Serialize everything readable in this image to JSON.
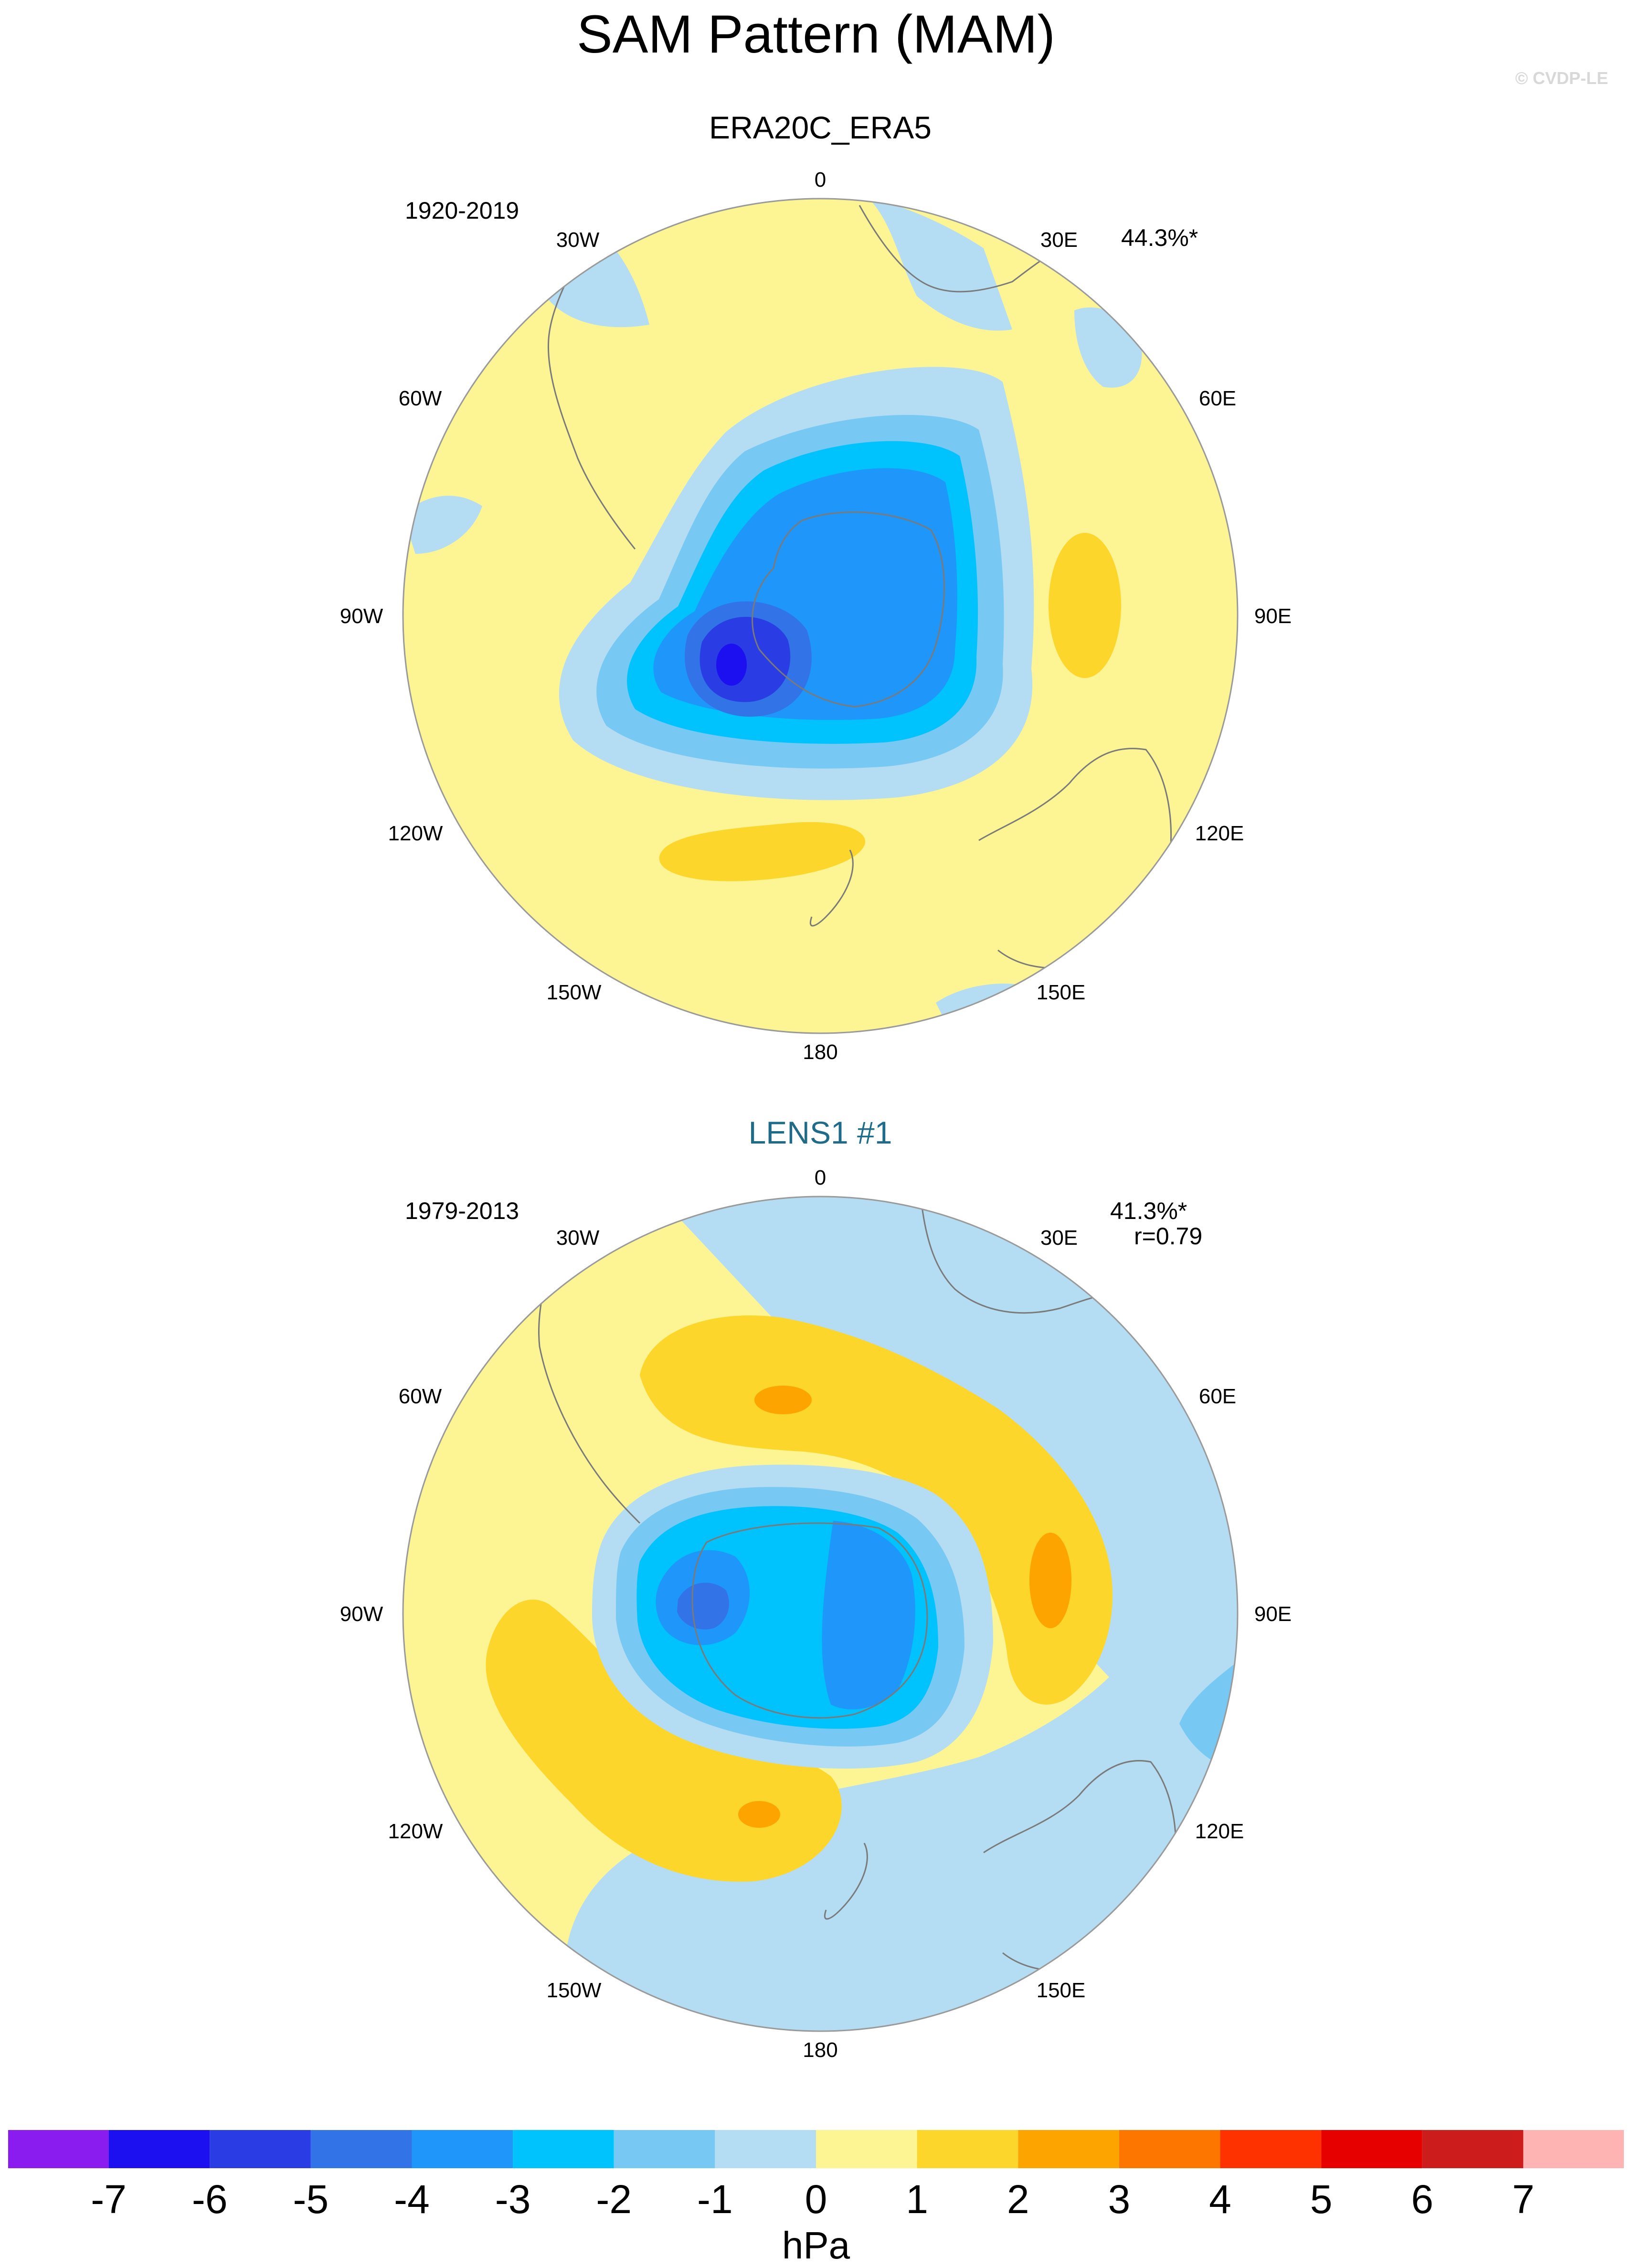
{
  "title": "SAM Pattern (MAM)",
  "copyright": "© CVDP-LE",
  "colors": {
    "bg": "#ffffff",
    "land_outline": "#7a7a7a",
    "panel2_title": "#1f6b8a"
  },
  "panels": [
    {
      "title": "ERA20C_ERA5",
      "period": "1920-2019",
      "stats": [
        "44.3%*"
      ],
      "lon_labels": [
        "0",
        "30E",
        "60E",
        "90E",
        "120E",
        "150E",
        "180",
        "150W",
        "120W",
        "90W",
        "60W",
        "30W"
      ]
    },
    {
      "title": "LENS1 #1",
      "period": "1979-2013",
      "stats": [
        "41.3%*",
        "r=0.79"
      ],
      "lon_labels": [
        "0",
        "30E",
        "60E",
        "90E",
        "120E",
        "150E",
        "180",
        "150W",
        "120W",
        "90W",
        "60W",
        "30W"
      ]
    }
  ],
  "chart_data": {
    "type": "heatmap",
    "projection": "south-polar-stereographic",
    "units": "hPa",
    "colorbar": {
      "labels": [
        "-7",
        "-6",
        "-5",
        "-4",
        "-3",
        "-2",
        "-1",
        "0",
        "1",
        "2",
        "3",
        "4",
        "5",
        "6",
        "7"
      ],
      "colors": [
        "#8a1cf0",
        "#1c10f0",
        "#2a3ce4",
        "#3274e8",
        "#1e96fa",
        "#00c2fc",
        "#78c8f4",
        "#b4dcf2",
        "#fdf594",
        "#fdd62c",
        "#fda400",
        "#fd7600",
        "#fd3200",
        "#e60000",
        "#cc1c1c",
        "#ffb4b4"
      ]
    }
  }
}
